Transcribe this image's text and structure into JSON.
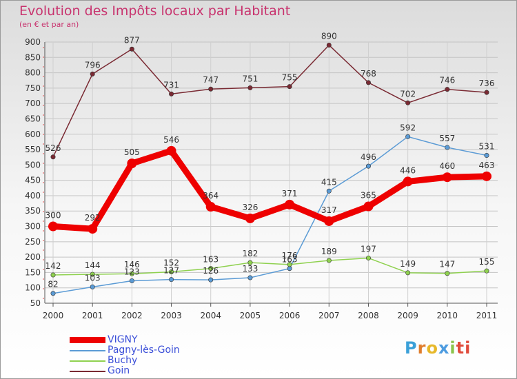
{
  "chart_data": {
    "type": "line",
    "title": "Evolution des Impôts locaux par Habitant",
    "subtitle": "(en € et par an)",
    "categories": [
      "2000",
      "2001",
      "2002",
      "2003",
      "2004",
      "2005",
      "2006",
      "2007",
      "2008",
      "2009",
      "2010",
      "2011"
    ],
    "ylim": [
      50,
      900
    ],
    "yticks": [
      50,
      100,
      150,
      200,
      250,
      300,
      350,
      400,
      450,
      500,
      550,
      600,
      650,
      700,
      750,
      800,
      850,
      900
    ],
    "series": [
      {
        "name": "Goin",
        "color": "#7a2a33",
        "values": [
          526,
          796,
          877,
          731,
          747,
          751,
          755,
          890,
          768,
          702,
          746,
          736
        ]
      },
      {
        "name": "Pagny-lès-Goin",
        "color": "#5b9bd5",
        "values": [
          82,
          103,
          123,
          127,
          126,
          133,
          163,
          415,
          496,
          592,
          557,
          531
        ]
      },
      {
        "name": "Buchy",
        "color": "#8fd14f",
        "values": [
          142,
          144,
          146,
          152,
          163,
          182,
          176,
          189,
          197,
          149,
          147,
          155
        ]
      },
      {
        "name": "VIGNY",
        "color": "#ee0000",
        "values": [
          300,
          292,
          505,
          546,
          364,
          326,
          371,
          317,
          365,
          446,
          460,
          463
        ]
      }
    ],
    "point_labels": [
      {
        "series": "Goin",
        "labels": [
          "526",
          "796",
          "877",
          "731",
          "747",
          "751",
          "755",
          "890",
          "768",
          "702",
          "746",
          "736"
        ]
      },
      {
        "series": "Pagny-lès-Goin",
        "labels": [
          "82",
          "103",
          "123",
          "127",
          "126",
          "133",
          "163",
          "415",
          "496",
          "592",
          "557",
          "531"
        ]
      },
      {
        "series": "Buchy",
        "labels": [
          "142",
          "144",
          "146",
          "152",
          "163",
          "182",
          "176",
          "189",
          "197",
          "149",
          "147",
          "155"
        ]
      },
      {
        "series": "VIGNY",
        "labels": [
          "300",
          "292",
          "505",
          "546",
          "364",
          "326",
          "371",
          "317",
          "365",
          "446",
          "460",
          "463"
        ]
      }
    ]
  },
  "legend": {
    "items": [
      {
        "name": "VIGNY",
        "color": "#ee0000"
      },
      {
        "name": "Pagny-lès-Goin",
        "color": "#5b9bd5"
      },
      {
        "name": "Buchy",
        "color": "#8fd14f"
      },
      {
        "name": "Goin",
        "color": "#7a2a33"
      }
    ]
  },
  "logo": {
    "letters": [
      "P",
      "r",
      "o",
      "x",
      "i",
      "ti"
    ]
  }
}
